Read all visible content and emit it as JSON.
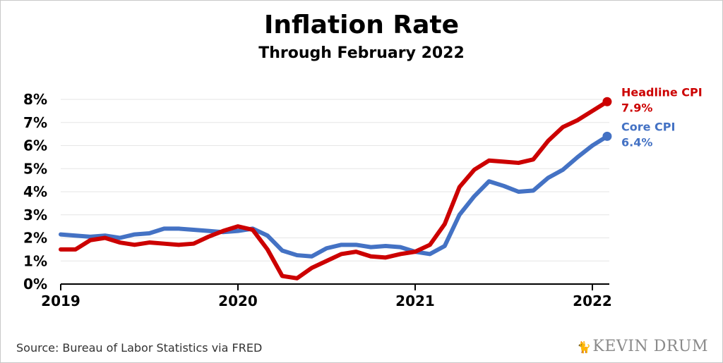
{
  "title": "Inflation Rate",
  "subtitle": "Through February 2022",
  "source": "Source: Bureau of Labor Statistics via FRED",
  "brand": "KEVIN DRUM",
  "chart_data": {
    "type": "line",
    "title": "Inflation Rate",
    "subtitle": "Through February 2022",
    "xlabel": "",
    "ylabel": "",
    "ylim": [
      0,
      8
    ],
    "y_ticks": [
      "0%",
      "1%",
      "2%",
      "3%",
      "4%",
      "5%",
      "6%",
      "7%",
      "8%"
    ],
    "x_ticks": [
      "2019",
      "2020",
      "2021",
      "2022"
    ],
    "grid": true,
    "x": [
      "2019-01",
      "2019-02",
      "2019-03",
      "2019-04",
      "2019-05",
      "2019-06",
      "2019-07",
      "2019-08",
      "2019-09",
      "2019-10",
      "2019-11",
      "2019-12",
      "2020-01",
      "2020-02",
      "2020-03",
      "2020-04",
      "2020-05",
      "2020-06",
      "2020-07",
      "2020-08",
      "2020-09",
      "2020-10",
      "2020-11",
      "2020-12",
      "2021-01",
      "2021-02",
      "2021-03",
      "2021-04",
      "2021-05",
      "2021-06",
      "2021-07",
      "2021-08",
      "2021-09",
      "2021-10",
      "2021-11",
      "2021-12",
      "2022-01",
      "2022-02"
    ],
    "series": [
      {
        "name": "Headline CPI",
        "end_label": "7.9%",
        "color": "#cc0000",
        "values": [
          1.5,
          1.5,
          1.9,
          2.0,
          1.8,
          1.7,
          1.8,
          1.75,
          1.7,
          1.75,
          2.05,
          2.3,
          2.5,
          2.35,
          1.5,
          0.35,
          0.25,
          0.7,
          1.0,
          1.3,
          1.4,
          1.2,
          1.15,
          1.3,
          1.4,
          1.7,
          2.6,
          4.2,
          4.95,
          5.35,
          5.3,
          5.25,
          5.4,
          6.2,
          6.8,
          7.1,
          7.5,
          7.9
        ]
      },
      {
        "name": "Core CPI",
        "end_label": "6.4%",
        "color": "#4472c4",
        "values": [
          2.15,
          2.1,
          2.05,
          2.1,
          2.0,
          2.15,
          2.2,
          2.4,
          2.4,
          2.35,
          2.3,
          2.25,
          2.3,
          2.4,
          2.1,
          1.45,
          1.25,
          1.2,
          1.55,
          1.7,
          1.7,
          1.6,
          1.65,
          1.6,
          1.4,
          1.3,
          1.65,
          3.0,
          3.8,
          4.45,
          4.25,
          4.0,
          4.05,
          4.6,
          4.95,
          5.5,
          6.0,
          6.4
        ]
      }
    ]
  }
}
